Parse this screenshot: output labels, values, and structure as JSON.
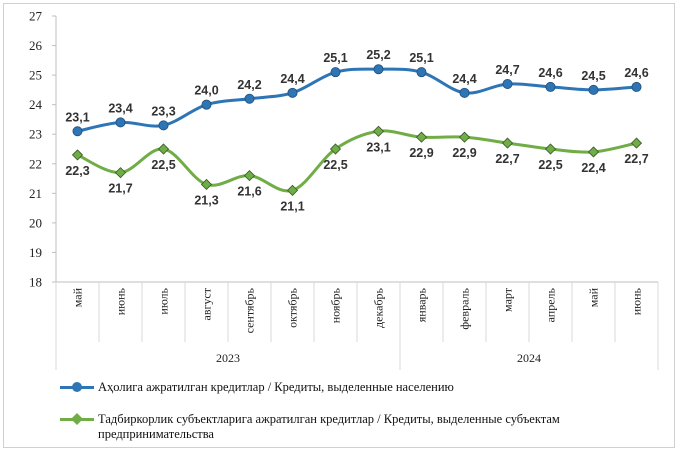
{
  "chart_data": {
    "type": "line",
    "categories": [
      "май",
      "июнь",
      "июль",
      "август",
      "сентябрь",
      "октябрь",
      "ноябрь",
      "декабрь",
      "январь",
      "февраль",
      "март",
      "апрель",
      "май",
      "июнь"
    ],
    "year_groups": [
      {
        "label": "2023",
        "count": 8
      },
      {
        "label": "2024",
        "count": 6
      }
    ],
    "ylim": [
      18,
      27
    ],
    "yticks": [
      18,
      19,
      20,
      21,
      22,
      23,
      24,
      25,
      26,
      27
    ],
    "grid": false,
    "legend_position": "bottom",
    "series": [
      {
        "name": "Аҳолига ажратилган кредитлар / Кредиты, выделенные населению",
        "color": "#2e75b6",
        "marker": "circle",
        "values": [
          23.1,
          23.4,
          23.3,
          24.0,
          24.2,
          24.4,
          25.1,
          25.2,
          25.1,
          24.4,
          24.7,
          24.6,
          24.5,
          24.6
        ],
        "labels": [
          "23,1",
          "23,4",
          "23,3",
          "24,0",
          "24,2",
          "24,4",
          "25,1",
          "25,2",
          "25,1",
          "24,4",
          "24,7",
          "24,6",
          "24,5",
          "24,6"
        ]
      },
      {
        "name": "Тадбиркорлик субъектларига ажратилган кредитлар / Кредиты, выделенные субъектам предпринимательства",
        "color": "#70ad47",
        "marker": "diamond",
        "values": [
          22.3,
          21.7,
          22.5,
          21.3,
          21.6,
          21.1,
          22.5,
          23.1,
          22.9,
          22.9,
          22.7,
          22.5,
          22.4,
          22.7
        ],
        "labels": [
          "22,3",
          "21,7",
          "22,5",
          "21,3",
          "21,6",
          "21,1",
          "22,5",
          "23,1",
          "22,9",
          "22,9",
          "22,7",
          "22,5",
          "22,4",
          "22,7"
        ]
      }
    ]
  }
}
